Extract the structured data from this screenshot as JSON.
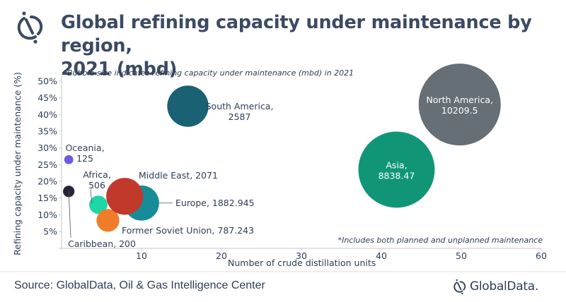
{
  "header": {
    "title_line1": "Global refining capacity under maintenance by region,",
    "title_line2": "2021 (mbd)",
    "logo_icon": "globaldata-mark-icon"
  },
  "footer": {
    "source": "Source: GlobalData, Oil & Gas Intelligence Center",
    "brand": "GlobalData."
  },
  "chart_data": {
    "type": "scatter",
    "subtype": "bubble",
    "title": "Global refining capacity under maintenance by region, 2021 (mbd)",
    "subtitle": "Bubble size indicates refining capacity under maintenance (mbd) in 2021",
    "annotation": "*Includes both planned and unplanned maintenance",
    "xlabel": "Number of crude distillation units",
    "ylabel": "Refining capacity under maintenance (%)",
    "xlim": [
      0,
      60
    ],
    "ylim": [
      0,
      50
    ],
    "x_ticks": [
      "10",
      "20",
      "30",
      "40",
      "50",
      "60"
    ],
    "x_tick_values": [
      10,
      20,
      30,
      40,
      50,
      60
    ],
    "y_ticks": [
      "5%",
      "10%",
      "15%",
      "20%",
      "25%",
      "30%",
      "35%",
      "40%",
      "45%",
      "50%"
    ],
    "y_tick_values": [
      5,
      10,
      15,
      20,
      25,
      30,
      35,
      40,
      45,
      50
    ],
    "grid": false,
    "series": [
      {
        "name": "Oceania",
        "label": "Oceania,\n125",
        "x": 0.9,
        "y": 26.5,
        "size": 125,
        "color": "#6b5ce7"
      },
      {
        "name": "Caribbean",
        "label": "Caribbean, 200",
        "x": 0.9,
        "y": 17,
        "size": 200,
        "color": "#27243a"
      },
      {
        "name": "Africa",
        "label": "Africa,\n506",
        "x": 4.6,
        "y": 13,
        "size": 506,
        "color": "#1ed6a6"
      },
      {
        "name": "Former Soviet Union",
        "label": "Former Soviet Union, 787.243",
        "x": 5.8,
        "y": 8.3,
        "size": 787.243,
        "color": "#f07c2a"
      },
      {
        "name": "Europe",
        "label": "Europe, 1882.945",
        "x": 10,
        "y": 13.5,
        "size": 1882.945,
        "color": "#168c99"
      },
      {
        "name": "Middle East",
        "label": "Middle East, 2071",
        "x": 7.9,
        "y": 15.5,
        "size": 2071,
        "color": "#c0392b"
      },
      {
        "name": "South America",
        "label": "South America,\n2587",
        "x": 15.8,
        "y": 42.5,
        "size": 2587,
        "color": "#1b6174"
      },
      {
        "name": "Asia",
        "label": "Asia,\n8838.47",
        "x": 41.9,
        "y": 23.5,
        "size": 8838.47,
        "color": "#109676"
      },
      {
        "name": "North America",
        "label": "North America,\n10209.5",
        "x": 49.8,
        "y": 43,
        "size": 10209.5,
        "color": "#666f76"
      }
    ]
  }
}
